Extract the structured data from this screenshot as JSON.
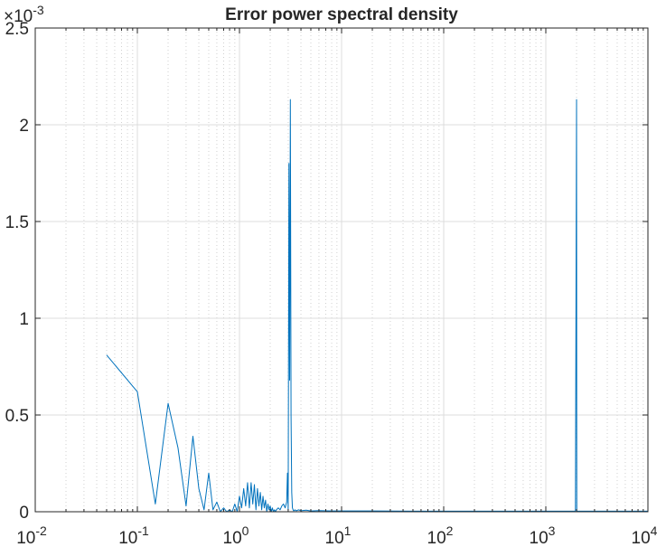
{
  "chart_data": {
    "type": "line",
    "title": "Error power spectral density",
    "xlabel": "",
    "ylabel": "",
    "x_scale": "log",
    "xlim": [
      0.01,
      10000
    ],
    "ylim": [
      0,
      0.0025
    ],
    "y_exponent_label": "×10⁻³",
    "grid": true,
    "x_tick_values": [
      0.01,
      0.1,
      1,
      10,
      100,
      1000,
      10000
    ],
    "x_tick_labels": [
      {
        "base": "10",
        "exp": "-2"
      },
      {
        "base": "10",
        "exp": "-1"
      },
      {
        "base": "10",
        "exp": "0"
      },
      {
        "base": "10",
        "exp": "1"
      },
      {
        "base": "10",
        "exp": "2"
      },
      {
        "base": "10",
        "exp": "3"
      },
      {
        "base": "10",
        "exp": "4"
      }
    ],
    "y_tick_values": [
      0,
      0.0005,
      0.001,
      0.0015,
      0.002,
      0.0025
    ],
    "y_tick_labels": [
      "0",
      "0.5",
      "1",
      "1.5",
      "2",
      "2.5"
    ],
    "line_color": "#0072BD",
    "series": [
      {
        "x": [
          0.05,
          0.1,
          0.15,
          0.2,
          0.25,
          0.3,
          0.35,
          0.4,
          0.45,
          0.5,
          0.55,
          0.6,
          0.65,
          0.7,
          0.75,
          0.8,
          0.85,
          0.9,
          0.95,
          1.0,
          1.05,
          1.1,
          1.15,
          1.2,
          1.25,
          1.3,
          1.35,
          1.4,
          1.45,
          1.5,
          1.55,
          1.6,
          1.65,
          1.7,
          1.75,
          1.8,
          1.85,
          1.9,
          1.95,
          2.0,
          2.05,
          2.1,
          2.15,
          2.2,
          2.25,
          2.3,
          2.4,
          2.5,
          2.6,
          2.7,
          2.8,
          2.9,
          2.95,
          3.0,
          3.05,
          3.1,
          3.15,
          3.2,
          3.25,
          3.3,
          3.35,
          3.4,
          3.5,
          3.6,
          3.8,
          4.0,
          4.5,
          5.0,
          6.0,
          8.0,
          10,
          20,
          50,
          100,
          200,
          500,
          1000,
          1500,
          1900,
          1950,
          2000,
          2010,
          2050,
          2100,
          2500,
          5000,
          10000
        ],
        "y": [
          0.00081,
          0.00062,
          4e-05,
          0.00056,
          0.00033,
          3e-05,
          0.00039,
          0.00012,
          1e-05,
          0.0002,
          1e-05,
          5e-05,
          0.0,
          2e-05,
          0.0,
          1e-05,
          0.0,
          4e-05,
          0.0,
          8e-05,
          2e-05,
          0.00012,
          3e-05,
          0.00015,
          2e-05,
          0.00015,
          4e-05,
          0.00014,
          1e-05,
          0.00012,
          3e-05,
          0.0001,
          1e-05,
          8e-05,
          2e-05,
          6e-05,
          0.0,
          4e-05,
          1e-05,
          3e-05,
          0.0,
          2e-05,
          0.0,
          1e-05,
          0.0,
          1e-05,
          2e-05,
          1e-05,
          3e-05,
          4e-05,
          2e-05,
          5e-05,
          0.0002,
          1e-05,
          0.0018,
          0.00068,
          0.00213,
          0.0005,
          0.0001,
          2e-05,
          1e-05,
          5e-06,
          1e-05,
          5e-06,
          1e-05,
          5e-06,
          8e-06,
          4e-06,
          6e-06,
          4e-06,
          4e-06,
          4e-06,
          3e-06,
          3e-06,
          3e-06,
          3e-06,
          3e-06,
          3e-06,
          3e-06,
          3e-06,
          0.00213,
          3e-06,
          3e-06,
          3e-06,
          3e-06,
          3e-06,
          3e-06
        ]
      }
    ]
  }
}
